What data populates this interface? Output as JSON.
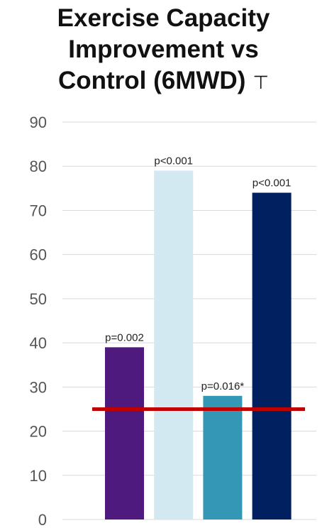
{
  "chart_data": {
    "type": "bar",
    "title_lines": [
      "Exercise Capacity",
      "Improvement vs",
      "Control (6MWD)"
    ],
    "title_mark": "⊤",
    "xlabel": "",
    "ylabel": "",
    "ylim": [
      0,
      90
    ],
    "yticks": [
      "0",
      "10",
      "20",
      "30",
      "40",
      "50",
      "60",
      "70",
      "80",
      "90"
    ],
    "grid": true,
    "bars": [
      {
        "value": 39,
        "label": "p=0.002",
        "color": "#4f1a7e"
      },
      {
        "value": 79,
        "label": "p<0.001",
        "color": "#d3e9f1"
      },
      {
        "value": 28,
        "label": "p=0.016*",
        "color": "#3497b5"
      },
      {
        "value": 74,
        "label": "p<0.001",
        "color": "#002060"
      }
    ],
    "reference_line": {
      "value": 25,
      "color": "#c00000"
    }
  }
}
